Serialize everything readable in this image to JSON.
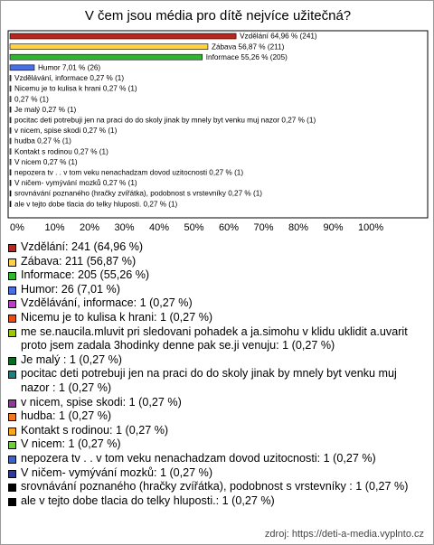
{
  "chart_data": {
    "type": "bar",
    "orientation": "horizontal",
    "title": "V čem jsou média pro dítě nejvíce užitečná?",
    "values": [
      64.96,
      56.87,
      55.26,
      7.01,
      0.27,
      0.27,
      0.27,
      0.27,
      0.27,
      0.27,
      0.27,
      0.27,
      0.27,
      0.27,
      0.27,
      0.27,
      0.27
    ],
    "value_labels": [
      "Vzdělání 64,96 % (241)",
      "Zábava 56,87 % (211)",
      "Informace 55,26 % (205)",
      "Humor 7,01 % (26)",
      "Vzdělávání, informace 0,27 % (1)",
      "Nicemu je to kulisa k hrani 0,27 % (1)",
      "0,27 % (1)",
      "Je malý  0,27 % (1)",
      "pocitac deti potrebuji jen na praci do do skoly jinak by mnely byt venku muj nazor  0,27 % (1)",
      "v nicem, spise skodi 0,27 % (1)",
      "hudba 0,27 % (1)",
      "Kontakt s rodinou 0,27 % (1)",
      "V nicem 0,27 % (1)",
      "nepozera tv . . v tom veku nenachadzam dovod uzitocnosti 0,27 % (1)",
      "V ničem- vymývání mozků 0,27 % (1)",
      "srovnávání poznaného (hračky zvířátka), podobnost s vrstevníky  0,27 % (1)",
      "ale v tejto dobe tlacia do telky hluposti. 0,27 % (1)"
    ],
    "legend_labels": [
      "Vzdělání: 241 (64,96 %)",
      "Zábava: 211 (56,87 %)",
      "Informace: 205 (55,26 %)",
      "Humor: 26 (7,01 %)",
      "Vzdělávání, informace: 1 (0,27 %)",
      "Nicemu je to kulisa k hrani: 1 (0,27 %)",
      "me se.naucila.mluvit pri sledovani pohadek a ja.simohu v klidu uklidit a.uvarit proto jsem zadala 3hodinky denne pak se.ji venuju: 1 (0,27 %)",
      "Je malý : 1 (0,27 %)",
      "pocitac deti potrebuji jen na praci do do skoly jinak by mnely byt venku muj nazor : 1 (0,27 %)",
      "v nicem, spise skodi: 1 (0,27 %)",
      "hudba: 1 (0,27 %)",
      "Kontakt s rodinou: 1 (0,27 %)",
      "V nicem: 1 (0,27 %)",
      "nepozera tv . . v tom veku nenachadzam dovod uzitocnosti: 1 (0,27 %)",
      "V ničem- vymývání mozků: 1 (0,27 %)",
      "srovnávání poznaného (hračky zvířátka), podobnost s vrstevníky : 1 (0,27 %)",
      "ale v tejto dobe tlacia do telky hluposti.: 1 (0,27 %)"
    ],
    "colors": [
      "#b8261c",
      "#ffd23f",
      "#2fb82f",
      "#4a6fe0",
      "#c03cc8",
      "#f04a12",
      "#99cc00",
      "#0a6b1e",
      "#1b8080",
      "#8e3b95",
      "#f0781e",
      "#f7a81b",
      "#6fcf3a",
      "#3a64c8",
      "#2c3a9c",
      "#000000",
      "#000000"
    ],
    "xlim": [
      0,
      100
    ],
    "xticks": [
      {
        "value": 0,
        "label": "0%"
      },
      {
        "value": 10,
        "label": "10%"
      },
      {
        "value": 20,
        "label": "20%"
      },
      {
        "value": 30,
        "label": "30%"
      },
      {
        "value": 40,
        "label": "40%"
      },
      {
        "value": 50,
        "label": "50%"
      },
      {
        "value": 60,
        "label": "60%"
      },
      {
        "value": 70,
        "label": "70%"
      },
      {
        "value": 80,
        "label": "80%"
      },
      {
        "value": 90,
        "label": "90%"
      },
      {
        "value": 100,
        "label": "100%"
      }
    ],
    "source": "zdroj: https://deti-a-media.vyplnto.cz"
  }
}
